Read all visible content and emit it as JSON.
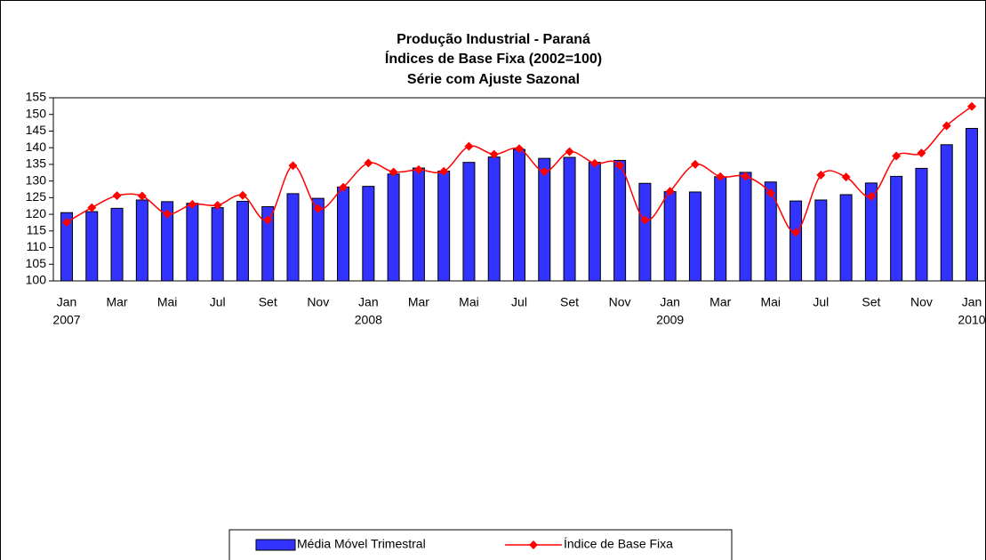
{
  "chart_data": {
    "type": "bar",
    "title": [
      "Produção Industrial - Paraná",
      "Índices de Base Fixa (2002=100)",
      "Série com Ajuste Sazonal"
    ],
    "categories": [
      "Jan",
      null,
      "Mar",
      null,
      "Mai",
      null,
      "Jul",
      null,
      "Set",
      null,
      "Nov",
      null,
      "Jan",
      null,
      "Mar",
      null,
      "Mai",
      null,
      "Jul",
      null,
      "Set",
      null,
      "Nov",
      null,
      "Jan",
      null,
      "Mar",
      null,
      "Mai",
      null,
      "Jul",
      null,
      "Set",
      null,
      "Nov",
      null,
      "Jan"
    ],
    "category_years": [
      "2007",
      null,
      null,
      null,
      null,
      null,
      null,
      null,
      null,
      null,
      null,
      null,
      "2008",
      null,
      null,
      null,
      null,
      null,
      null,
      null,
      null,
      null,
      null,
      null,
      "2009",
      null,
      null,
      null,
      null,
      null,
      null,
      null,
      null,
      null,
      null,
      null,
      "2010"
    ],
    "series": [
      {
        "name": "Média Móvel Trimestral",
        "type": "bar",
        "color": "#3333ff",
        "values": [
          120.5,
          120.8,
          121.8,
          124.3,
          123.8,
          123.3,
          122,
          123.9,
          122.3,
          126.2,
          124.8,
          128.2,
          128.4,
          132.1,
          133.9,
          133,
          135.6,
          137.2,
          139.5,
          136.8,
          137.1,
          135.6,
          136.2,
          129.3,
          126.8,
          126.7,
          131.3,
          132.6,
          129.7,
          124,
          124.3,
          125.9,
          129.4,
          131.4,
          133.8,
          140.9,
          145.8
        ]
      },
      {
        "name": "Índice de Base Fixa",
        "type": "line",
        "color": "#ff0000",
        "values": [
          117.6,
          122,
          125.6,
          125.5,
          120.1,
          123,
          122.7,
          125.7,
          118.3,
          134.6,
          121.7,
          128.1,
          135.4,
          132.7,
          133.4,
          132.9,
          140.4,
          138,
          139.7,
          132.8,
          138.8,
          135.3,
          134.7,
          118.3,
          126.9,
          135,
          131.3,
          131.4,
          126.4,
          114.6,
          131.8,
          131.2,
          125.4,
          137.5,
          138.4,
          146.6,
          152.4
        ]
      }
    ],
    "ylim": [
      100,
      155
    ],
    "yticks": [
      100,
      105,
      110,
      115,
      120,
      125,
      130,
      135,
      140,
      145,
      150,
      155
    ],
    "grid": false,
    "legend": "bottom"
  }
}
